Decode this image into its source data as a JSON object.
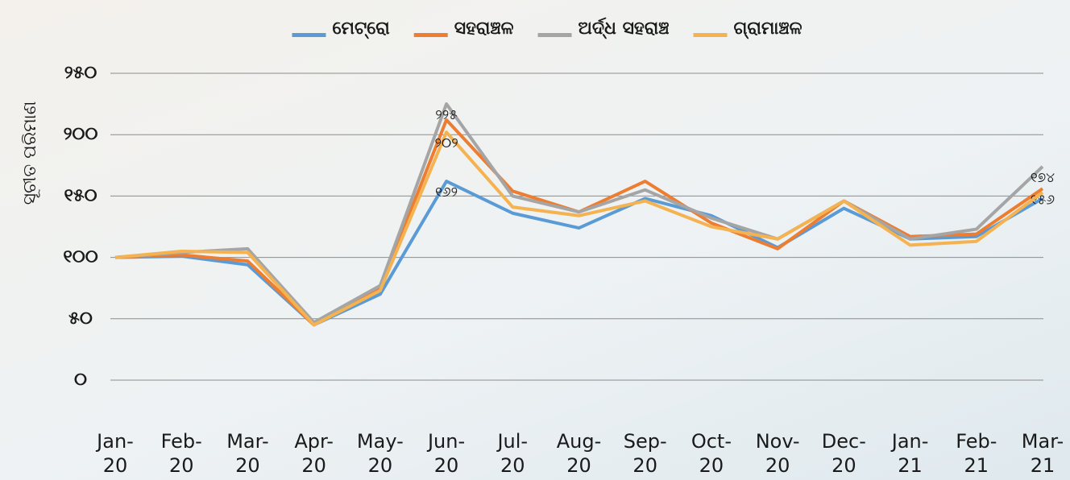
{
  "chart_data": {
    "type": "line",
    "y_label": "ସୂଚୀତ ପରିମାଣ",
    "categories": [
      "Jan-\n20",
      "Feb-\n20",
      "Mar-\n20",
      "Apr-\n20",
      "May-\n20",
      "Jun-\n20",
      "Jul-\n20",
      "Aug-\n20",
      "Sep-\n20",
      "Oct-\n20",
      "Nov-\n20",
      "Dec-\n20",
      "Jan-\n21",
      "Feb-\n21",
      "Mar-\n21"
    ],
    "series": [
      {
        "name": "ମେଟ୍ରୋ",
        "color": "#5b9bd5",
        "values": [
          100,
          101,
          94,
          45,
          70,
          162,
          136,
          124,
          148,
          134,
          108,
          140,
          115,
          117,
          148
        ],
        "value_labels": [
          null,
          null,
          null,
          null,
          null,
          "୧୬୨",
          null,
          null,
          null,
          null,
          null,
          null,
          null,
          null,
          null
        ]
      },
      {
        "name": "ସହରାଞ୍ଚଳ",
        "color": "#ed7d31",
        "values": [
          100,
          102,
          97,
          45,
          75,
          212,
          154,
          137,
          162,
          128,
          107,
          146,
          117,
          119,
          156
        ],
        "value_labels": [
          null,
          null,
          null,
          null,
          null,
          null,
          null,
          null,
          null,
          null,
          null,
          null,
          null,
          null,
          "୧୫୬"
        ]
      },
      {
        "name": "ଅର୍ଦ୍ଧ ସହରାଞ୍ଚ",
        "color": "#a5a5a5",
        "values": [
          100,
          104,
          107,
          47,
          77,
          225,
          150,
          137,
          155,
          132,
          115,
          146,
          115,
          123,
          174
        ],
        "value_labels": [
          null,
          null,
          null,
          null,
          null,
          "୨୨୫",
          null,
          null,
          null,
          null,
          null,
          null,
          null,
          null,
          "୧୭୪"
        ]
      },
      {
        "name": "ଗ୍ରାମାଞ୍ଚଳ",
        "color": "#f4b350",
        "values": [
          100,
          105,
          104,
          45,
          73,
          202,
          141,
          134,
          146,
          125,
          115,
          146,
          110,
          113,
          153
        ],
        "value_labels": [
          null,
          null,
          null,
          null,
          null,
          "୨୦୨",
          null,
          null,
          null,
          null,
          null,
          null,
          null,
          null,
          null
        ]
      }
    ],
    "ylim": [
      0,
      250
    ],
    "yticks": [
      {
        "value": 0,
        "label": "୦"
      },
      {
        "value": 50,
        "label": "୫୦"
      },
      {
        "value": 100,
        "label": "୧୦୦"
      },
      {
        "value": 150,
        "label": "୧୫୦"
      },
      {
        "value": 200,
        "label": "୨୦୦"
      },
      {
        "value": 250,
        "label": "୨୫୦"
      }
    ],
    "grid": true,
    "legend": "top"
  }
}
